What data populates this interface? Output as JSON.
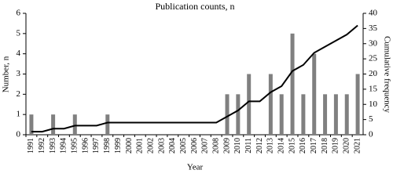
{
  "chart_data": {
    "type": "bar_line",
    "title": "Publication counts, n",
    "x_label": "Year",
    "y_label": "Number, n",
    "y2_label": "Cumulative frequency",
    "categories": [
      "1991",
      "1992",
      "1993",
      "1994",
      "1995",
      "1996",
      "1997",
      "1998",
      "1999",
      "2000",
      "2001",
      "2002",
      "2003",
      "2004",
      "2005",
      "2006",
      "2007",
      "2008",
      "2009",
      "2010",
      "2011",
      "2012",
      "2013",
      "2014",
      "2015",
      "2016",
      "2017",
      "2018",
      "2019",
      "2020",
      "2021"
    ],
    "series": [
      {
        "type": "bar",
        "color": "#808080",
        "values": [
          1,
          0,
          1,
          0,
          1,
          0,
          0,
          1,
          0,
          0,
          0,
          0,
          0,
          0,
          0,
          0,
          0,
          0,
          2,
          2,
          3,
          0,
          3,
          2,
          5,
          2,
          4,
          2,
          2,
          2,
          3
        ]
      },
      {
        "type": "line",
        "axis": "y2",
        "color": "#000000",
        "values": [
          1,
          1,
          2,
          2,
          3,
          3,
          3,
          4,
          4,
          4,
          4,
          4,
          4,
          4,
          4,
          4,
          4,
          4,
          6,
          8,
          11,
          11,
          14,
          16,
          21,
          23,
          27,
          29,
          31,
          33,
          36
        ]
      }
    ],
    "ylim": [
      0,
      6
    ],
    "yticks": [
      0,
      1,
      2,
      3,
      4,
      5,
      6
    ],
    "y2lim": [
      0,
      40
    ],
    "y2ticks": [
      0,
      5,
      10,
      15,
      20,
      25,
      30,
      35,
      40
    ]
  }
}
